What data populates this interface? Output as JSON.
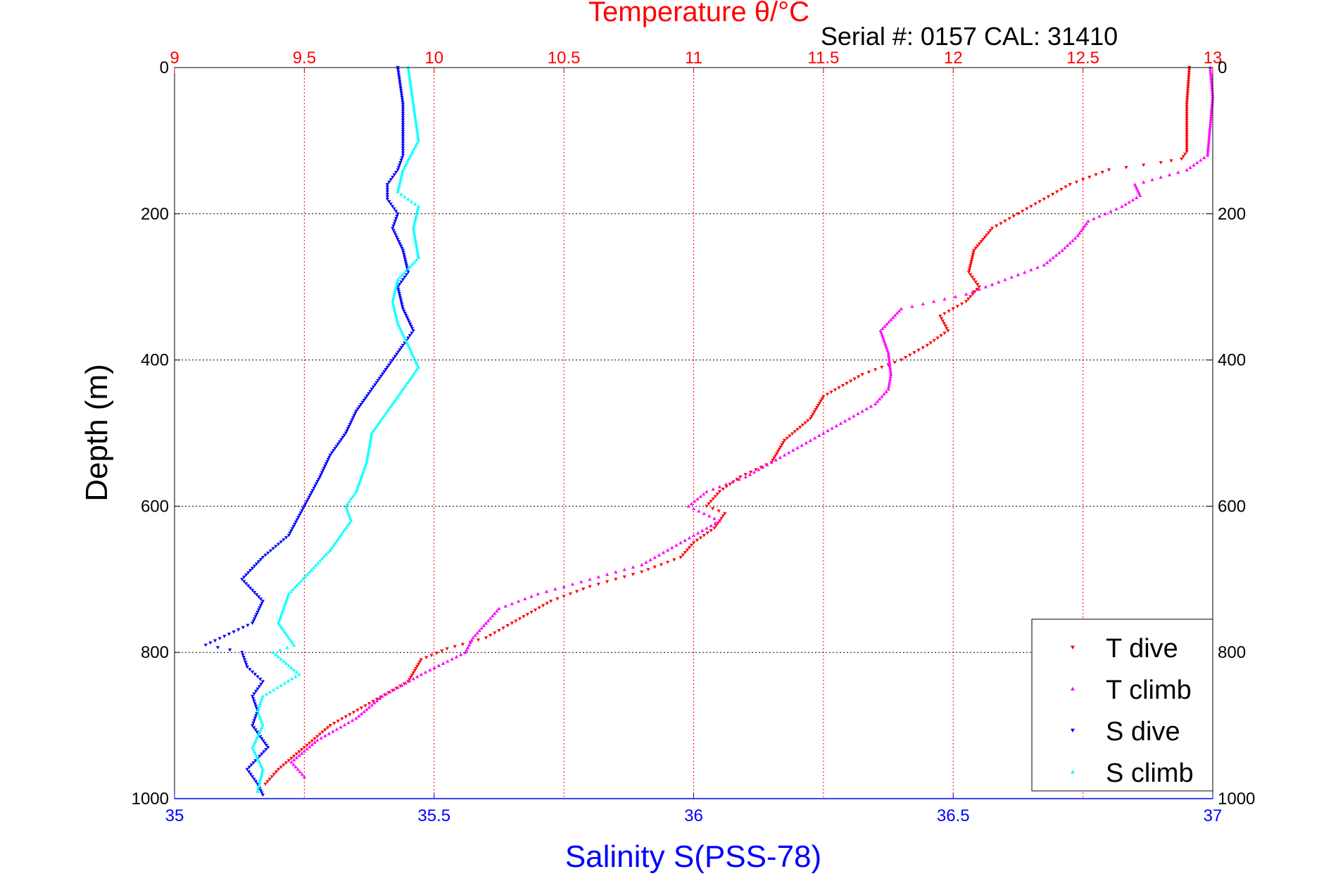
{
  "colors": {
    "t_dive": "#ff0000",
    "t_climb": "#ff00ff",
    "s_dive": "#0000ff",
    "s_climb": "#00ffff",
    "temp_axis": "#ff0000",
    "sal_axis": "#0000ff",
    "axis": "#000000",
    "grid_temp": "#ff0000",
    "grid_depth": "#000000"
  },
  "chart_data": {
    "type": "scatter",
    "title": "Temperature θ/°C",
    "subtitle": "Serial #: 0157  CAL: 31410",
    "ylabel": "Depth (m)",
    "xlabel_bottom": "Salinity S(PSS-78)",
    "xlabel_top": "Temperature θ/°C",
    "ylim": [
      0,
      1000
    ],
    "y_reversed": true,
    "x_top_lim": [
      9,
      13
    ],
    "x_bottom_lim": [
      35,
      37
    ],
    "y_ticks": [
      "0",
      "200",
      "400",
      "600",
      "800",
      "1000"
    ],
    "x_top_ticks": [
      "9",
      "9.5",
      "10",
      "10.5",
      "11",
      "11.5",
      "12",
      "12.5",
      "13"
    ],
    "x_bottom_ticks": [
      "35",
      "35.5",
      "36",
      "36.5",
      "37"
    ],
    "grid": "on",
    "legend_position": "bottom-right",
    "series": [
      {
        "name": "T dive",
        "axis": "temperature",
        "marker": "triangle-down",
        "x": [
          12.91,
          12.9,
          12.9,
          12.9,
          12.88,
          12.8,
          12.6,
          12.45,
          12.35,
          12.25,
          12.15,
          12.08,
          12.06,
          12.1,
          12.05,
          11.95,
          11.98,
          11.9,
          11.8,
          11.65,
          11.5,
          11.45,
          11.35,
          11.3,
          11.18,
          11.1,
          11.05,
          11.12,
          11.08,
          11.0,
          10.95,
          10.8,
          10.6,
          10.45,
          10.3,
          10.2,
          10.05,
          9.95,
          9.9,
          9.75,
          9.6,
          9.5,
          9.4,
          9.35
        ],
        "y": [
          0,
          50,
          100,
          115,
          125,
          130,
          140,
          160,
          180,
          200,
          220,
          250,
          280,
          300,
          320,
          340,
          360,
          380,
          400,
          420,
          450,
          480,
          510,
          540,
          560,
          580,
          600,
          610,
          630,
          650,
          670,
          690,
          710,
          730,
          760,
          780,
          795,
          810,
          840,
          870,
          900,
          930,
          960,
          980
        ]
      },
      {
        "name": "T climb",
        "axis": "temperature",
        "marker": "triangle-up",
        "x": [
          12.99,
          13.0,
          12.99,
          12.98,
          12.9,
          12.7,
          12.72,
          12.65,
          12.52,
          12.48,
          12.42,
          12.35,
          12.2,
          12.05,
          11.8,
          11.72,
          11.75,
          11.76,
          11.75,
          11.7,
          11.6,
          11.5,
          11.4,
          11.3,
          11.2,
          11.05,
          10.98,
          11.1,
          11.0,
          10.9,
          10.8,
          10.6,
          10.4,
          10.25,
          10.2,
          10.15,
          10.12,
          9.95,
          9.8,
          9.7,
          9.55,
          9.45,
          9.5
        ],
        "y": [
          0,
          40,
          80,
          120,
          140,
          160,
          175,
          190,
          210,
          230,
          250,
          270,
          290,
          310,
          330,
          360,
          390,
          420,
          440,
          460,
          480,
          500,
          520,
          540,
          560,
          580,
          600,
          620,
          640,
          660,
          680,
          700,
          720,
          740,
          760,
          780,
          800,
          830,
          860,
          890,
          920,
          950,
          970
        ]
      },
      {
        "name": "S dive",
        "axis": "salinity",
        "marker": "triangle-down",
        "x": [
          35.43,
          35.44,
          35.44,
          35.44,
          35.43,
          35.41,
          35.41,
          35.43,
          35.42,
          35.44,
          35.45,
          35.43,
          35.44,
          35.46,
          35.44,
          35.41,
          35.38,
          35.35,
          35.33,
          35.3,
          35.28,
          35.25,
          35.22,
          35.17,
          35.13,
          35.17,
          35.15,
          35.06,
          35.13,
          35.14,
          35.17,
          35.15,
          35.16,
          35.15,
          35.18,
          35.14,
          35.16,
          35.17
        ],
        "y": [
          0,
          50,
          100,
          120,
          140,
          160,
          180,
          200,
          220,
          250,
          280,
          300,
          330,
          360,
          380,
          410,
          440,
          470,
          500,
          530,
          560,
          600,
          640,
          670,
          700,
          730,
          760,
          790,
          800,
          820,
          840,
          860,
          880,
          900,
          930,
          960,
          980,
          995
        ]
      },
      {
        "name": "S climb",
        "axis": "salinity",
        "marker": "triangle-up",
        "x": [
          35.45,
          35.46,
          35.47,
          35.44,
          35.43,
          35.47,
          35.46,
          35.47,
          35.43,
          35.42,
          35.43,
          35.45,
          35.47,
          35.44,
          35.41,
          35.38,
          35.37,
          35.35,
          35.33,
          35.34,
          35.3,
          35.26,
          35.22,
          35.2,
          35.23,
          35.19,
          35.24,
          35.17,
          35.16,
          35.17,
          35.15,
          35.17,
          35.16
        ],
        "y": [
          0,
          50,
          100,
          140,
          170,
          190,
          220,
          260,
          290,
          320,
          350,
          380,
          410,
          440,
          470,
          500,
          540,
          580,
          600,
          620,
          660,
          690,
          720,
          760,
          790,
          800,
          830,
          860,
          880,
          900,
          930,
          960,
          990
        ]
      }
    ]
  }
}
